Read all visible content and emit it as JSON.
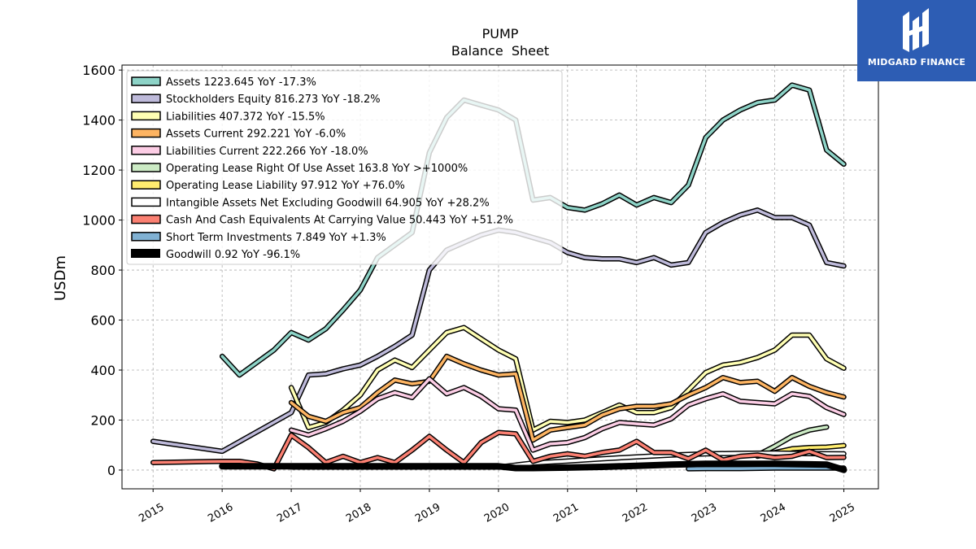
{
  "brand": {
    "name": "MIDGARD FINANCE",
    "bg": "#2d5db4"
  },
  "chart_data": {
    "type": "line",
    "title": "PUMP",
    "subtitle": "Balance  Sheet",
    "ylabel": "USDm",
    "xlabel": "",
    "xlim": [
      2014.55,
      2025.5
    ],
    "ylim": [
      -75,
      1620
    ],
    "yticks": [
      0,
      200,
      400,
      600,
      800,
      1000,
      1200,
      1400,
      1600
    ],
    "xticks": [
      "2015",
      "2016",
      "2017",
      "2018",
      "2019",
      "2020",
      "2021",
      "2022",
      "2023",
      "2024",
      "2025"
    ],
    "grid": true,
    "legend_position": "top-left",
    "series": [
      {
        "name": "Assets  1223.645 YoY -17.3%",
        "color": "#8dd3c7",
        "points": [
          [
            2016.0,
            455
          ],
          [
            2016.25,
            380
          ],
          [
            2016.5,
            430
          ],
          [
            2016.75,
            480
          ],
          [
            2017.0,
            550
          ],
          [
            2017.25,
            520
          ],
          [
            2017.5,
            565
          ],
          [
            2017.75,
            640
          ],
          [
            2018.0,
            720
          ],
          [
            2018.25,
            850
          ],
          [
            2018.5,
            900
          ],
          [
            2018.75,
            950
          ],
          [
            2019.0,
            1270
          ],
          [
            2019.25,
            1410
          ],
          [
            2019.5,
            1480
          ],
          [
            2019.75,
            1460
          ],
          [
            2020.0,
            1440
          ],
          [
            2020.25,
            1400
          ],
          [
            2020.5,
            1080
          ],
          [
            2020.75,
            1090
          ],
          [
            2021.0,
            1050
          ],
          [
            2021.25,
            1040
          ],
          [
            2021.5,
            1065
          ],
          [
            2021.75,
            1100
          ],
          [
            2022.0,
            1060
          ],
          [
            2022.25,
            1090
          ],
          [
            2022.5,
            1070
          ],
          [
            2022.75,
            1140
          ],
          [
            2023.0,
            1330
          ],
          [
            2023.25,
            1400
          ],
          [
            2023.5,
            1440
          ],
          [
            2023.75,
            1470
          ],
          [
            2024.0,
            1480
          ],
          [
            2024.25,
            1540
          ],
          [
            2024.5,
            1520
          ],
          [
            2024.75,
            1280
          ],
          [
            2025.0,
            1223.645
          ]
        ]
      },
      {
        "name": "Stockholders Equity  816.273 YoY -18.2%",
        "color": "#bebada",
        "points": [
          [
            2015.0,
            115
          ],
          [
            2016.0,
            75
          ],
          [
            2017.0,
            230
          ],
          [
            2017.25,
            380
          ],
          [
            2017.5,
            385
          ],
          [
            2017.75,
            405
          ],
          [
            2018.0,
            420
          ],
          [
            2018.25,
            455
          ],
          [
            2018.5,
            495
          ],
          [
            2018.75,
            540
          ],
          [
            2019.0,
            800
          ],
          [
            2019.25,
            880
          ],
          [
            2019.5,
            910
          ],
          [
            2019.75,
            940
          ],
          [
            2020.0,
            960
          ],
          [
            2020.25,
            950
          ],
          [
            2020.5,
            930
          ],
          [
            2020.75,
            910
          ],
          [
            2021.0,
            870
          ],
          [
            2021.25,
            850
          ],
          [
            2021.5,
            845
          ],
          [
            2021.75,
            845
          ],
          [
            2022.0,
            830
          ],
          [
            2022.25,
            850
          ],
          [
            2022.5,
            820
          ],
          [
            2022.75,
            830
          ],
          [
            2023.0,
            950
          ],
          [
            2023.25,
            990
          ],
          [
            2023.5,
            1020
          ],
          [
            2023.75,
            1040
          ],
          [
            2024.0,
            1010
          ],
          [
            2024.25,
            1010
          ],
          [
            2024.5,
            980
          ],
          [
            2024.75,
            830
          ],
          [
            2025.0,
            816.273
          ]
        ]
      },
      {
        "name": "Liabilities  407.372 YoY -15.5%",
        "color": "#ffffb3",
        "points": [
          [
            2017.0,
            330
          ],
          [
            2017.25,
            170
          ],
          [
            2017.5,
            190
          ],
          [
            2017.75,
            240
          ],
          [
            2018.0,
            300
          ],
          [
            2018.25,
            400
          ],
          [
            2018.5,
            440
          ],
          [
            2018.75,
            410
          ],
          [
            2019.0,
            480
          ],
          [
            2019.25,
            550
          ],
          [
            2019.5,
            570
          ],
          [
            2019.75,
            525
          ],
          [
            2020.0,
            480
          ],
          [
            2020.25,
            445
          ],
          [
            2020.5,
            160
          ],
          [
            2020.75,
            195
          ],
          [
            2021.0,
            190
          ],
          [
            2021.25,
            200
          ],
          [
            2021.5,
            230
          ],
          [
            2021.75,
            260
          ],
          [
            2022.0,
            230
          ],
          [
            2022.25,
            230
          ],
          [
            2022.5,
            250
          ],
          [
            2022.75,
            320
          ],
          [
            2023.0,
            390
          ],
          [
            2023.25,
            420
          ],
          [
            2023.5,
            430
          ],
          [
            2023.75,
            450
          ],
          [
            2024.0,
            480
          ],
          [
            2024.25,
            540
          ],
          [
            2024.5,
            540
          ],
          [
            2024.75,
            445
          ],
          [
            2025.0,
            407.372
          ]
        ]
      },
      {
        "name": "Assets Current  292.221 YoY -6.0%",
        "color": "#fdb462",
        "points": [
          [
            2017.0,
            270
          ],
          [
            2017.25,
            215
          ],
          [
            2017.5,
            195
          ],
          [
            2017.75,
            230
          ],
          [
            2018.0,
            250
          ],
          [
            2018.25,
            310
          ],
          [
            2018.5,
            360
          ],
          [
            2018.75,
            345
          ],
          [
            2019.0,
            355
          ],
          [
            2019.25,
            455
          ],
          [
            2019.5,
            425
          ],
          [
            2019.75,
            400
          ],
          [
            2020.0,
            380
          ],
          [
            2020.25,
            385
          ],
          [
            2020.5,
            120
          ],
          [
            2020.75,
            160
          ],
          [
            2021.0,
            170
          ],
          [
            2021.25,
            180
          ],
          [
            2021.5,
            220
          ],
          [
            2021.75,
            245
          ],
          [
            2022.0,
            255
          ],
          [
            2022.25,
            255
          ],
          [
            2022.5,
            265
          ],
          [
            2022.75,
            300
          ],
          [
            2023.0,
            330
          ],
          [
            2023.25,
            370
          ],
          [
            2023.5,
            350
          ],
          [
            2023.75,
            355
          ],
          [
            2024.0,
            315
          ],
          [
            2024.25,
            370
          ],
          [
            2024.5,
            335
          ],
          [
            2024.75,
            310
          ],
          [
            2025.0,
            292.221
          ]
        ]
      },
      {
        "name": "Liabilities Current  222.266 YoY -18.0%",
        "color": "#fccde5",
        "points": [
          [
            2017.0,
            160
          ],
          [
            2017.25,
            140
          ],
          [
            2017.5,
            165
          ],
          [
            2017.75,
            195
          ],
          [
            2018.0,
            235
          ],
          [
            2018.25,
            285
          ],
          [
            2018.5,
            310
          ],
          [
            2018.75,
            290
          ],
          [
            2019.0,
            365
          ],
          [
            2019.25,
            305
          ],
          [
            2019.5,
            330
          ],
          [
            2019.75,
            295
          ],
          [
            2020.0,
            245
          ],
          [
            2020.25,
            240
          ],
          [
            2020.5,
            80
          ],
          [
            2020.75,
            105
          ],
          [
            2021.0,
            110
          ],
          [
            2021.25,
            130
          ],
          [
            2021.5,
            165
          ],
          [
            2021.75,
            190
          ],
          [
            2022.0,
            185
          ],
          [
            2022.25,
            180
          ],
          [
            2022.5,
            205
          ],
          [
            2022.75,
            260
          ],
          [
            2023.0,
            285
          ],
          [
            2023.25,
            305
          ],
          [
            2023.5,
            275
          ],
          [
            2023.75,
            270
          ],
          [
            2024.0,
            265
          ],
          [
            2024.25,
            305
          ],
          [
            2024.5,
            295
          ],
          [
            2024.75,
            250
          ],
          [
            2025.0,
            222.266
          ]
        ]
      },
      {
        "name": "Operating Lease Right Of Use Asset  163.8 YoY >+1000%",
        "color": "#ccebc5",
        "points": [
          [
            2023.75,
            60
          ],
          [
            2024.0,
            95
          ],
          [
            2024.25,
            135
          ],
          [
            2024.5,
            160
          ],
          [
            2024.75,
            172
          ]
        ]
      },
      {
        "name": "Operating Lease Liability  97.912 YoY +76.0%",
        "color": "#ffed6f",
        "points": [
          [
            2023.75,
            55
          ],
          [
            2024.0,
            70
          ],
          [
            2024.25,
            85
          ],
          [
            2024.5,
            90
          ],
          [
            2024.75,
            92
          ],
          [
            2025.0,
            97.912
          ]
        ]
      },
      {
        "name": "Intangible Assets Net Excluding Goodwill  64.905 YoY +28.2%",
        "color": "#ffffff",
        "points": [
          [
            2017.0,
            12
          ],
          [
            2017.5,
            12
          ],
          [
            2018.0,
            12
          ],
          [
            2018.5,
            12
          ],
          [
            2019.0,
            12
          ],
          [
            2019.5,
            12
          ],
          [
            2020.0,
            12
          ],
          [
            2020.25,
            20
          ],
          [
            2020.5,
            28
          ],
          [
            2021.0,
            36
          ],
          [
            2021.5,
            45
          ],
          [
            2022.0,
            53
          ],
          [
            2022.5,
            60
          ],
          [
            2023.0,
            65
          ],
          [
            2023.5,
            67
          ],
          [
            2024.0,
            68
          ],
          [
            2024.5,
            66
          ],
          [
            2025.0,
            64.905
          ]
        ]
      },
      {
        "name": "Cash And Cash Equivalents At Carrying Value  50.443 YoY +51.2%",
        "color": "#fb8072",
        "points": [
          [
            2015.0,
            30
          ],
          [
            2016.0,
            35
          ],
          [
            2016.25,
            35
          ],
          [
            2016.5,
            25
          ],
          [
            2016.75,
            5
          ],
          [
            2017.0,
            140
          ],
          [
            2017.25,
            90
          ],
          [
            2017.5,
            30
          ],
          [
            2017.75,
            55
          ],
          [
            2018.0,
            30
          ],
          [
            2018.25,
            50
          ],
          [
            2018.5,
            30
          ],
          [
            2018.75,
            80
          ],
          [
            2019.0,
            135
          ],
          [
            2019.25,
            80
          ],
          [
            2019.5,
            30
          ],
          [
            2019.75,
            110
          ],
          [
            2020.0,
            150
          ],
          [
            2020.25,
            145
          ],
          [
            2020.5,
            35
          ],
          [
            2020.75,
            55
          ],
          [
            2021.0,
            65
          ],
          [
            2021.25,
            55
          ],
          [
            2021.5,
            70
          ],
          [
            2021.75,
            80
          ],
          [
            2022.0,
            115
          ],
          [
            2022.25,
            70
          ],
          [
            2022.5,
            70
          ],
          [
            2022.75,
            45
          ],
          [
            2023.0,
            80
          ],
          [
            2023.25,
            40
          ],
          [
            2023.5,
            55
          ],
          [
            2023.75,
            60
          ],
          [
            2024.0,
            50
          ],
          [
            2024.25,
            55
          ],
          [
            2024.5,
            75
          ],
          [
            2024.75,
            50
          ],
          [
            2025.0,
            50.443
          ]
        ]
      },
      {
        "name": "Short Term Investments  7.849 YoY +1.3%",
        "color": "#80b1d3",
        "points": [
          [
            2022.75,
            5
          ],
          [
            2023.0,
            6
          ],
          [
            2023.5,
            6
          ],
          [
            2024.0,
            8
          ],
          [
            2024.5,
            8
          ],
          [
            2024.75,
            8
          ],
          [
            2025.0,
            7.849
          ]
        ]
      },
      {
        "name": "Goodwill  0.92 YoY -96.1%",
        "color": "#000000",
        "points": [
          [
            2016.0,
            15
          ],
          [
            2016.5,
            15
          ],
          [
            2017.0,
            15
          ],
          [
            2017.5,
            15
          ],
          [
            2018.0,
            15
          ],
          [
            2018.5,
            15
          ],
          [
            2019.0,
            15
          ],
          [
            2019.5,
            15
          ],
          [
            2020.0,
            15
          ],
          [
            2020.25,
            8
          ],
          [
            2020.5,
            8
          ],
          [
            2021.0,
            10
          ],
          [
            2021.5,
            13
          ],
          [
            2022.0,
            17
          ],
          [
            2022.5,
            22
          ],
          [
            2023.0,
            25
          ],
          [
            2023.5,
            25
          ],
          [
            2024.0,
            25
          ],
          [
            2024.5,
            23
          ],
          [
            2024.75,
            22
          ],
          [
            2025.0,
            0.92
          ]
        ]
      }
    ]
  }
}
